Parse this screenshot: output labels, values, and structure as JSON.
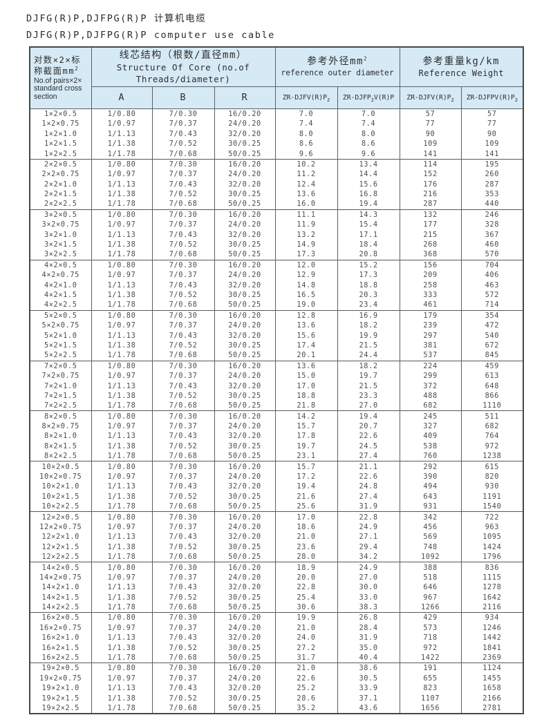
{
  "page": {
    "title_zh": "DJFG(R)P,DJFPG(R)P 计算机电缆",
    "title_en": "DJFG(R)P,DJFPG(R)P computer use cable"
  },
  "colors": {
    "header_bg": "#d6eaf6",
    "border": "#5a5e62",
    "text": "#4c4c4c"
  },
  "table": {
    "header": {
      "pairs": {
        "zh1": "对数×2×标",
        "zh2": "称截面mm",
        "zh2_sup": "2",
        "en1": "No.of pairs×2×",
        "en2": "standard cross",
        "en3": "section"
      },
      "core": {
        "zh": "线芯结构（根数/直径mm）",
        "en1": "Structure Of Core (no.of",
        "en2": "Threads/diameter)"
      },
      "diameter": {
        "zh": "参考外径mm",
        "zh_sup": "2",
        "en": "reference outer diameter"
      },
      "weight": {
        "zh": "参考重量kg/km",
        "en": "Reference Weight"
      },
      "sub": {
        "a": "A",
        "b": "B",
        "r": "R",
        "d1": {
          "pre": "ZR-DJFV(R)P",
          "sub": "2",
          "post": ""
        },
        "d2": {
          "pre": "ZR-DJFP",
          "sub": "2",
          "post": "V(R)P"
        },
        "w1": {
          "pre": "ZR-DJFV(R)P",
          "sub": "2",
          "post": ""
        },
        "w2": {
          "pre": "ZR-DJFPV(R)P",
          "sub": "2",
          "post": ""
        }
      }
    },
    "groups": [
      [
        [
          "1×2×0.5",
          "1/0.80",
          "7/0.30",
          "16/0.20",
          "7.0",
          "7.0",
          "57",
          "57"
        ],
        [
          "1×2×0.75",
          "1/0.97",
          "7/0.37",
          "24/0.20",
          "7.4",
          "7.4",
          "77",
          "77"
        ],
        [
          "1×2×1.0",
          "1/1.13",
          "7/0.43",
          "32/0.20",
          "8.0",
          "8.0",
          "90",
          "90"
        ],
        [
          "1×2×1.5",
          "1/1.38",
          "7/0.52",
          "30/0.25",
          "8.6",
          "8.6",
          "109",
          "109"
        ],
        [
          "1×2×2.5",
          "1/1.78",
          "7/0.68",
          "50/0.25",
          "9.6",
          "9.6",
          "141",
          "141"
        ]
      ],
      [
        [
          "2×2×0.5",
          "1/0.80",
          "7/0.30",
          "16/0.20",
          "10.2",
          "13.4",
          "114",
          "195"
        ],
        [
          "2×2×0.75",
          "1/0.97",
          "7/0.37",
          "24/0.20",
          "11.2",
          "14.4",
          "152",
          "260"
        ],
        [
          "2×2×1.0",
          "1/1.13",
          "7/0.43",
          "32/0.20",
          "12.4",
          "15.6",
          "176",
          "287"
        ],
        [
          "2×2×1.5",
          "1/1.38",
          "7/0.52",
          "30/0.25",
          "13.6",
          "16.8",
          "216",
          "353"
        ],
        [
          "2×2×2.5",
          "1/1.78",
          "7/0.68",
          "50/0.25",
          "16.0",
          "19.4",
          "287",
          "440"
        ]
      ],
      [
        [
          "3×2×0.5",
          "1/0.80",
          "7/0.30",
          "16/0.20",
          "11.1",
          "14.3",
          "132",
          "246"
        ],
        [
          "3×2×0.75",
          "1/0.97",
          "7/0.37",
          "24/0.20",
          "11.9",
          "15.4",
          "177",
          "328"
        ],
        [
          "3×2×1.0",
          "1/1.13",
          "7/0.43",
          "32/0.20",
          "13.2",
          "17.1",
          "215",
          "367"
        ],
        [
          "3×2×1.5",
          "1/1.38",
          "7/0.52",
          "30/0.25",
          "14.9",
          "18.4",
          "268",
          "460"
        ],
        [
          "3×2×2.5",
          "1/1.78",
          "7/0.68",
          "50/0.25",
          "17.3",
          "20.8",
          "368",
          "570"
        ]
      ],
      [
        [
          "4×2×0.5",
          "1/0.80",
          "7/0.30",
          "16/0.20",
          "12.0",
          "15.2",
          "156",
          "704"
        ],
        [
          "4×2×0.75",
          "1/0.97",
          "7/0.37",
          "24/0.20",
          "12.9",
          "17.3",
          "209",
          "406"
        ],
        [
          "4×2×1.0",
          "1/1.13",
          "7/0.43",
          "32/0.20",
          "14.8",
          "18.8",
          "258",
          "463"
        ],
        [
          "4×2×1.5",
          "1/1.38",
          "7/0.52",
          "30/0.25",
          "16.5",
          "20.3",
          "333",
          "572"
        ],
        [
          "4×2×2.5",
          "1/1.78",
          "7/0.68",
          "50/0.25",
          "19.0",
          "23.4",
          "461",
          "714"
        ]
      ],
      [
        [
          "5×2×0.5",
          "1/0.80",
          "7/0.30",
          "16/0.20",
          "12.8",
          "16.9",
          "179",
          "354"
        ],
        [
          "5×2×0.75",
          "1/0.97",
          "7/0.37",
          "24/0.20",
          "13.6",
          "18.2",
          "239",
          "472"
        ],
        [
          "5×2×1.0",
          "1/1.13",
          "7/0.43",
          "32/0.20",
          "15.6",
          "19.9",
          "297",
          "540"
        ],
        [
          "5×2×1.5",
          "1/1.38",
          "7/0.52",
          "30/0.25",
          "17.4",
          "21.5",
          "381",
          "672"
        ],
        [
          "5×2×2.5",
          "1/1.78",
          "7/0.68",
          "50/0.25",
          "20.1",
          "24.4",
          "537",
          "845"
        ]
      ],
      [
        [
          "7×2×0.5",
          "1/0.80",
          "7/0.30",
          "16/0.20",
          "13.6",
          "18.2",
          "224",
          "459"
        ],
        [
          "7×2×0.75",
          "1/0.97",
          "7/0.37",
          "24/0.20",
          "15.0",
          "19.7",
          "299",
          "613"
        ],
        [
          "7×2×1.0",
          "1/1.13",
          "7/0.43",
          "32/0.20",
          "17.0",
          "21.5",
          "372",
          "648"
        ],
        [
          "7×2×1.5",
          "1/1.38",
          "7/0.52",
          "30/0.25",
          "18.8",
          "23.3",
          "488",
          "866"
        ],
        [
          "7×2×2.5",
          "1/1.78",
          "7/0.68",
          "50/0.25",
          "21.8",
          "27.0",
          "682",
          "1110"
        ]
      ],
      [
        [
          "8×2×0.5",
          "1/0.80",
          "7/0.30",
          "16/0.20",
          "14.2",
          "19.4",
          "245",
          "511"
        ],
        [
          "8×2×0.75",
          "1/0.97",
          "7/0.37",
          "24/0.20",
          "15.7",
          "20.7",
          "327",
          "682"
        ],
        [
          "8×2×1.0",
          "1/1.13",
          "7/0.43",
          "32/0.20",
          "17.8",
          "22.6",
          "409",
          "764"
        ],
        [
          "8×2×1.5",
          "1/1.38",
          "7/0.52",
          "30/0.25",
          "19.7",
          "24.5",
          "538",
          "972"
        ],
        [
          "8×2×2.5",
          "1/1.78",
          "7/0.68",
          "50/0.25",
          "23.1",
          "27.4",
          "760",
          "1238"
        ]
      ],
      [
        [
          "10×2×0.5",
          "1/0.80",
          "7/0.30",
          "16/0.20",
          "15.7",
          "21.1",
          "292",
          "615"
        ],
        [
          "10×2×0.75",
          "1/0.97",
          "7/0.37",
          "24/0.20",
          "17.2",
          "22.6",
          "390",
          "820"
        ],
        [
          "10×2×1.0",
          "1/1.13",
          "7/0.43",
          "32/0.20",
          "19.4",
          "24.8",
          "494",
          "930"
        ],
        [
          "10×2×1.5",
          "1/1.38",
          "7/0.52",
          "30/0.25",
          "21.6",
          "27.4",
          "643",
          "1191"
        ],
        [
          "10×2×2.5",
          "1/1.78",
          "7/0.68",
          "50/0.25",
          "25.6",
          "31.9",
          "931",
          "1540"
        ]
      ],
      [
        [
          "12×2×0.5",
          "1/0.80",
          "7/0.30",
          "16/0.20",
          "17.0",
          "22.8",
          "342",
          "722"
        ],
        [
          "12×2×0.75",
          "1/0.97",
          "7/0.37",
          "24/0.20",
          "18.6",
          "24.9",
          "456",
          "963"
        ],
        [
          "12×2×1.0",
          "1/1.13",
          "7/0.43",
          "32/0.20",
          "21.0",
          "27.1",
          "569",
          "1095"
        ],
        [
          "12×2×1.5",
          "1/1.38",
          "7/0.52",
          "30/0.25",
          "23.6",
          "29.4",
          "748",
          "1424"
        ],
        [
          "12×2×2.5",
          "1/1.78",
          "7/0.68",
          "50/0.25",
          "28.0",
          "34.2",
          "1092",
          "1796"
        ]
      ],
      [
        [
          "14×2×0.5",
          "1/0.80",
          "7/0.30",
          "16/0.20",
          "18.9",
          "24.9",
          "388",
          "836"
        ],
        [
          "14×2×0.75",
          "1/0.97",
          "7/0.37",
          "24/0.20",
          "20.0",
          "27.0",
          "518",
          "1115"
        ],
        [
          "14×2×1.0",
          "1/1.13",
          "7/0.43",
          "32/0.20",
          "22.8",
          "30.0",
          "646",
          "1278"
        ],
        [
          "14×2×1.5",
          "1/1.38",
          "7/0.52",
          "30/0.25",
          "25.4",
          "33.0",
          "967",
          "1642"
        ],
        [
          "14×2×2.5",
          "1/1.78",
          "7/0.68",
          "50/0.25",
          "30.6",
          "38.3",
          "1266",
          "2116"
        ]
      ],
      [
        [
          "16×2×0.5",
          "1/0.80",
          "7/0.30",
          "16/0.20",
          "19.9",
          "26.8",
          "429",
          "934"
        ],
        [
          "16×2×0.75",
          "1/0.97",
          "7/0.37",
          "24/0.20",
          "21.0",
          "28.4",
          "573",
          "1246"
        ],
        [
          "16×2×1.0",
          "1/1.13",
          "7/0.43",
          "32/0.20",
          "24.0",
          "31.9",
          "718",
          "1442"
        ],
        [
          "16×2×1.5",
          "1/1.38",
          "7/0.52",
          "30/0.25",
          "27.2",
          "35.0",
          "972",
          "1841"
        ],
        [
          "16×2×2.5",
          "1/1.78",
          "7/0.68",
          "50/0.25",
          "31.7",
          "40.4",
          "1422",
          "2369"
        ]
      ],
      [
        [
          "19×2×0.5",
          "1/0.80",
          "7/0.30",
          "16/0.20",
          "21.0",
          "38.6",
          "191",
          "1124"
        ],
        [
          "19×2×0.75",
          "1/0.97",
          "7/0.37",
          "24/0.20",
          "22.6",
          "30.5",
          "655",
          "1455"
        ],
        [
          "19×2×1.0",
          "1/1.13",
          "7/0.43",
          "32/0.20",
          "25.2",
          "33.9",
          "823",
          "1658"
        ],
        [
          "19×2×1.5",
          "1/1.38",
          "7/0.52",
          "30/0.25",
          "28.6",
          "37.1",
          "1107",
          "2166"
        ],
        [
          "19×2×2.5",
          "1/1.78",
          "7/0.68",
          "50/0.25",
          "35.2",
          "43.6",
          "1656",
          "2781"
        ]
      ]
    ]
  }
}
